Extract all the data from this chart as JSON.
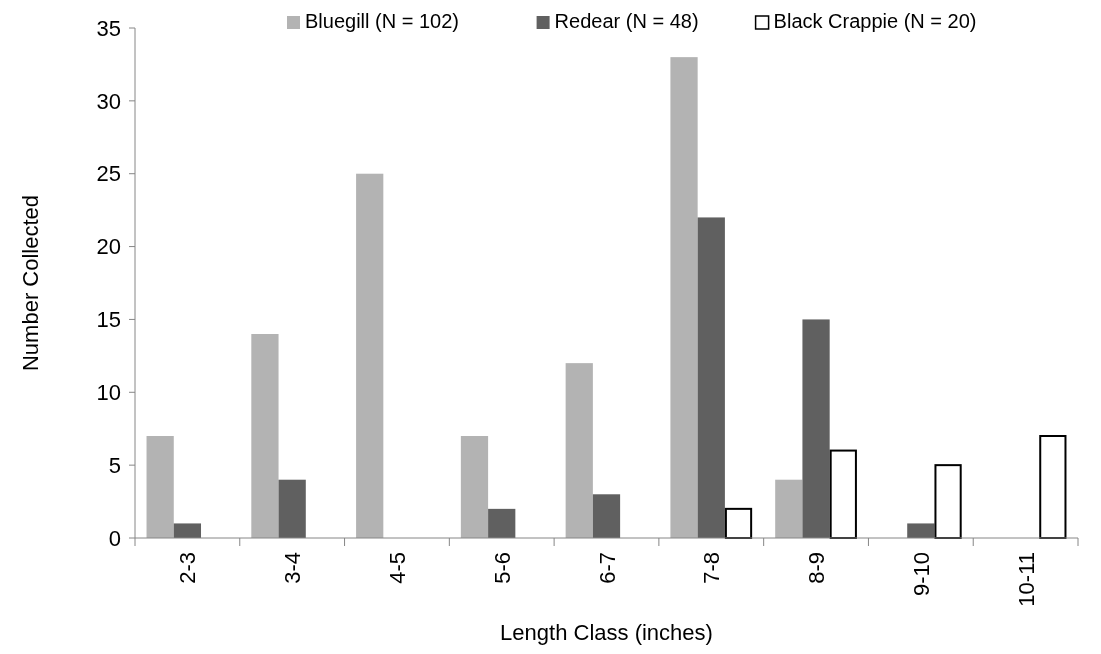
{
  "chart_data": {
    "type": "bar",
    "xlabel": "Length Class (inches)",
    "ylabel": "Number Collected",
    "categories": [
      "2-3",
      "3-4",
      "4-5",
      "5-6",
      "6-7",
      "7-8",
      "8-9",
      "9-10",
      "10-11"
    ],
    "series": [
      {
        "name": "Bluegill (N = 102)",
        "color": "#b3b3b3",
        "values": [
          7,
          14,
          25,
          7,
          12,
          33,
          4,
          0,
          0
        ]
      },
      {
        "name": "Redear (N = 48)",
        "color": "#606060",
        "values": [
          1,
          4,
          0,
          2,
          3,
          22,
          15,
          1,
          0
        ]
      },
      {
        "name": "Black Crappie (N = 20)",
        "color": "#ffffff",
        "values": [
          0,
          0,
          0,
          0,
          0,
          2,
          6,
          5,
          7
        ]
      }
    ],
    "ylim": [
      0,
      35
    ],
    "yticks": [
      0,
      5,
      10,
      15,
      20,
      25,
      30,
      35
    ],
    "grid": false,
    "legend": "top"
  }
}
